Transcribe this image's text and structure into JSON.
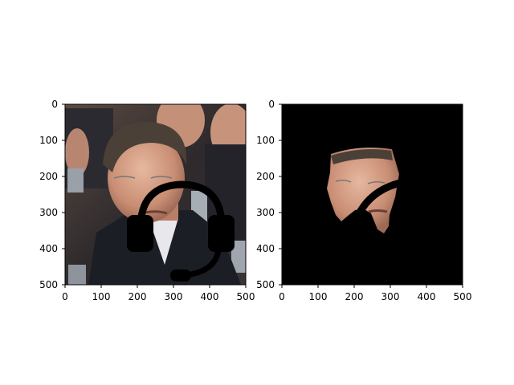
{
  "panels": [
    {
      "name": "original-image-panel",
      "image_description": "crowd photo, central man in dark coat with glasses, black headset overlay drawn on top",
      "xaxis": {
        "ticks": [
          "0",
          "100",
          "200",
          "300",
          "400",
          "500"
        ],
        "range": [
          0,
          500
        ]
      },
      "yaxis": {
        "ticks": [
          "0",
          "100",
          "200",
          "300",
          "400",
          "500"
        ],
        "range": [
          0,
          500
        ]
      }
    },
    {
      "name": "masked-face-panel",
      "image_description": "black background with only the segmented face region visible, headband arc occluding part of face",
      "xaxis": {
        "ticks": [
          "0",
          "100",
          "200",
          "300",
          "400",
          "500"
        ],
        "range": [
          0,
          500
        ]
      },
      "yaxis": {
        "ticks": [
          "0",
          "100",
          "200",
          "300",
          "400",
          "500"
        ],
        "range": [
          0,
          500
        ]
      }
    }
  ],
  "colors": {
    "background": "#ffffff",
    "mask_background": "#000000",
    "headset": "#000000",
    "skin": "#d7a389",
    "hair": "#4a4037",
    "coat": "#1c1e26"
  }
}
